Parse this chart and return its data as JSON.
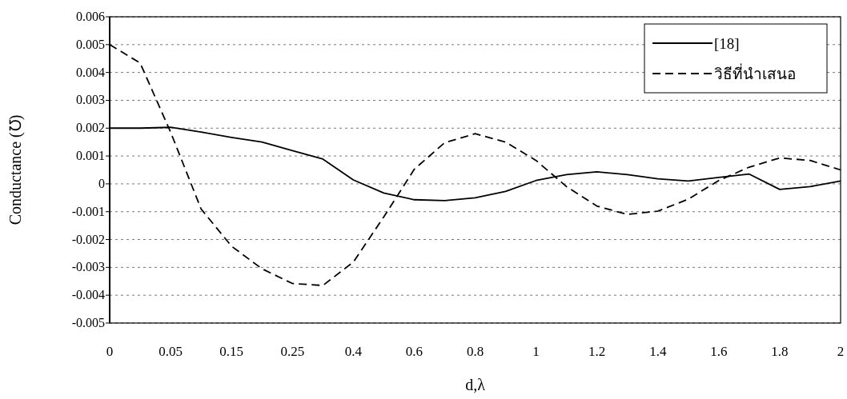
{
  "chart_data": {
    "type": "line",
    "xlabel": "d,λ",
    "ylabel": "Conductance (℧)",
    "categories": [
      "0",
      null,
      "0.05",
      null,
      "0.15",
      null,
      "0.25",
      null,
      "0.4",
      null,
      "0.6",
      null,
      "0.8",
      null,
      "1",
      null,
      "1.2",
      null,
      "1.4",
      null,
      "1.6",
      null,
      "1.8",
      null,
      "2"
    ],
    "series": [
      {
        "name": "[18]",
        "color": "#000000",
        "line_style": "solid",
        "values": [
          0.002,
          0.002,
          0.00203,
          0.00186,
          0.00167,
          0.0015,
          0.00119,
          0.00089,
          0.00014,
          -0.00033,
          -0.00057,
          -0.0006,
          -0.0005,
          -0.00027,
          0.00012,
          0.00033,
          0.00043,
          0.00033,
          0.00018,
          0.0001,
          0.00023,
          0.00035,
          -0.0002,
          -0.0001,
          0.0001
        ]
      },
      {
        "name": "วิธีที่นำเสนอ",
        "color": "#000000",
        "line_style": "dashed",
        "values": [
          0.005,
          0.00434,
          0.00186,
          -0.0009,
          -0.00224,
          -0.00305,
          -0.00358,
          -0.00365,
          -0.00281,
          -0.00119,
          0.00052,
          0.00148,
          0.0018,
          0.0015,
          0.00084,
          -0.0001,
          -0.0008,
          -0.0011,
          -0.00098,
          -0.00055,
          0.00012,
          0.0006,
          0.00093,
          0.00084,
          0.0005
        ]
      }
    ],
    "ylim": [
      -0.005,
      0.006
    ],
    "yticks": [
      -0.005,
      -0.004,
      -0.003,
      -0.002,
      -0.001,
      0,
      0.001,
      0.002,
      0.003,
      0.004,
      0.005,
      0.006
    ],
    "grid": "y",
    "legend": "top right",
    "marker": "none"
  }
}
